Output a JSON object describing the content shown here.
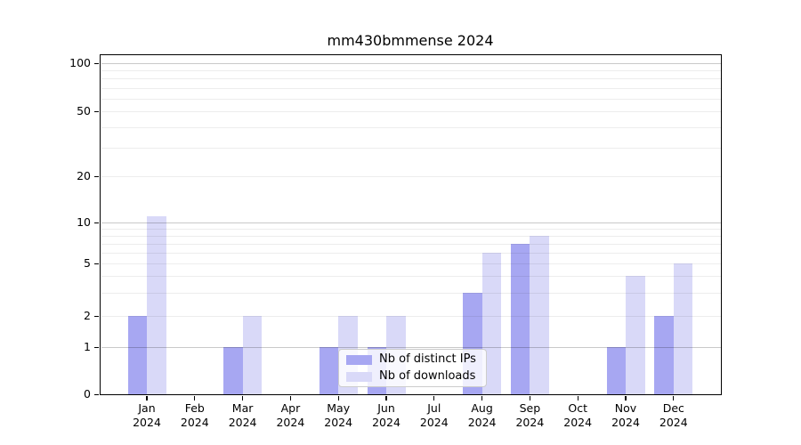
{
  "chart_data": {
    "type": "bar",
    "title": "mm430bmmense 2024",
    "year_label": "2024",
    "categories": [
      "Jan",
      "Feb",
      "Mar",
      "Apr",
      "May",
      "Jun",
      "Jul",
      "Aug",
      "Sep",
      "Oct",
      "Nov",
      "Dec"
    ],
    "series": [
      {
        "name": "Nb of distinct IPs",
        "color": "#a7a7f2",
        "values": [
          2,
          0,
          1,
          0,
          1,
          1,
          0,
          3,
          7,
          0,
          1,
          2
        ]
      },
      {
        "name": "Nb of downloads",
        "color": "#d9d9f8",
        "values": [
          11,
          0,
          2,
          0,
          2,
          2,
          0,
          6,
          8,
          0,
          4,
          5
        ]
      }
    ],
    "yscale": "symlog",
    "y_tick_labels": [
      "100",
      "50",
      "20",
      "10",
      "5",
      "2",
      "1",
      "0"
    ],
    "ylim": [
      0,
      114
    ],
    "grid": "major-and-minor-drawn-over-bars",
    "legend_position": "lower-center-inside"
  }
}
